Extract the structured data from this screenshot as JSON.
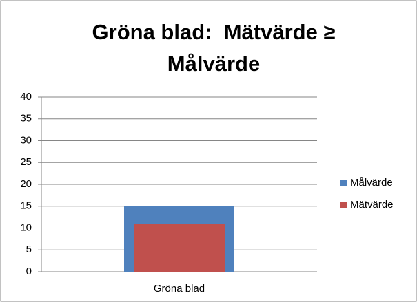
{
  "chart_data": {
    "type": "bar",
    "title": "Gröna blad:  Mätvärde ≥ Målvärde",
    "categories": [
      "Gröna blad"
    ],
    "series": [
      {
        "name": "Målvärde",
        "color": "#4f81bd",
        "values": [
          15
        ]
      },
      {
        "name": "Mätvärde",
        "color": "#c0504d",
        "values": [
          11
        ]
      }
    ],
    "ylim": [
      0,
      40
    ],
    "yticks": [
      0,
      5,
      10,
      15,
      20,
      25,
      30,
      35,
      40
    ],
    "grid": true,
    "legend": "right"
  }
}
